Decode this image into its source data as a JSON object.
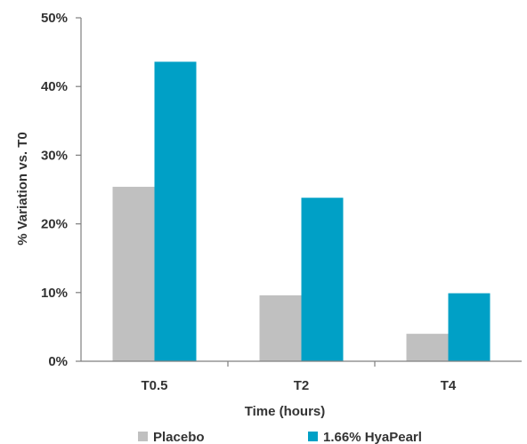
{
  "chart_data": {
    "type": "bar",
    "categories": [
      "T0.5",
      "T2",
      "T4"
    ],
    "series": [
      {
        "name": "Placebo",
        "values": [
          25.4,
          9.6,
          4.0
        ],
        "color": "#c0c0c0"
      },
      {
        "name": "1.66% HyaPearl",
        "values": [
          43.6,
          23.8,
          9.9
        ],
        "color": "#00a0c6"
      }
    ],
    "xlabel": "Time (hours)",
    "ylabel": "% Variation vs. T0",
    "ylim": [
      0,
      50
    ],
    "yticks": [
      0,
      10,
      20,
      30,
      40,
      50
    ],
    "ytick_labels": [
      "0%",
      "10%",
      "20%",
      "30%",
      "40%",
      "50%"
    ],
    "grid": false,
    "legend_position": "bottom",
    "axis_color": "#7f7f7f"
  }
}
